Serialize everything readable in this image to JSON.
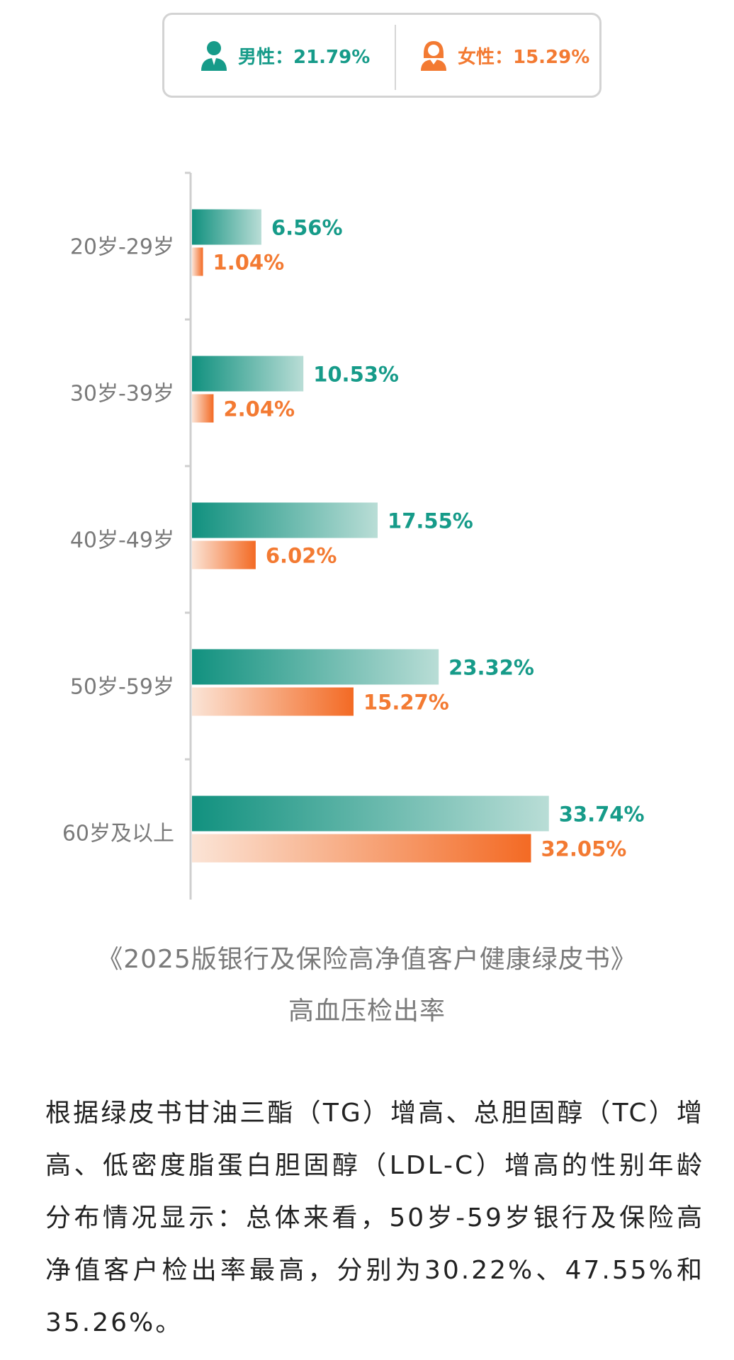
{
  "legend": {
    "male": {
      "text": "男性：21.79%",
      "icon": "male-user-icon",
      "color": "#169b89"
    },
    "female": {
      "text": "女性：15.29%",
      "icon": "female-user-icon",
      "color": "#f37a32"
    }
  },
  "chart_data": {
    "type": "bar",
    "orientation": "horizontal",
    "categories": [
      "20岁-29岁",
      "30岁-39岁",
      "40岁-49岁",
      "50岁-59岁",
      "60岁及以上"
    ],
    "series": [
      {
        "name": "男性",
        "values": [
          6.56,
          10.53,
          17.55,
          23.32,
          33.74
        ],
        "labels": [
          "6.56%",
          "10.53%",
          "17.55%",
          "23.32%",
          "33.74%"
        ],
        "color": "#169b89"
      },
      {
        "name": "女性",
        "values": [
          1.04,
          2.04,
          6.02,
          15.27,
          32.05
        ],
        "labels": [
          "1.04%",
          "2.04%",
          "6.02%",
          "15.27%",
          "32.05%"
        ],
        "color": "#f37a32"
      }
    ],
    "title": "",
    "xlabel": "",
    "ylabel": "",
    "grid": false,
    "legend": "top-center"
  },
  "caption": {
    "line1": "《2025版银行及保险高净值客户健康绿皮书》",
    "line2": "高血压检出率"
  },
  "paragraph": "根据绿皮书甘油三酯（TG）增高、总胆固醇（TC）增高、低密度脂蛋白胆固醇（LDL-C）增高的性别年龄分布情况显示：总体来看，50岁-59岁银行及保险高净值客户检出率最高，分别为30.22%、47.55%和35.26%。"
}
